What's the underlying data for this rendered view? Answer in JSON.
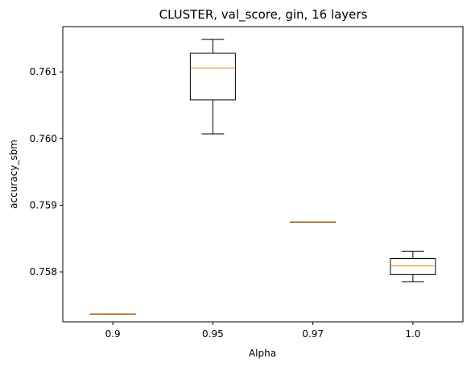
{
  "chart_data": {
    "type": "box",
    "title": "CLUSTER, val_score, gin, 16 layers",
    "xlabel": "Alpha",
    "ylabel": "accuracy_sbm",
    "categories": [
      "0.9",
      "0.95",
      "0.97",
      "1.0"
    ],
    "ylim": [
      0.75725,
      0.76168
    ],
    "yticks": [
      0.758,
      0.759,
      0.76,
      0.761
    ],
    "ytick_labels": [
      "0.758",
      "0.759",
      "0.760",
      "0.761"
    ],
    "grid": false,
    "boxes": [
      {
        "category": "0.9",
        "whisker_low": 0.75737,
        "q1": 0.75737,
        "median": 0.75737,
        "q3": 0.75737,
        "whisker_high": 0.75737
      },
      {
        "category": "0.95",
        "whisker_low": 0.76007,
        "q1": 0.76058,
        "median": 0.76106,
        "q3": 0.76128,
        "whisker_high": 0.76149
      },
      {
        "category": "0.97",
        "whisker_low": 0.75875,
        "q1": 0.75875,
        "median": 0.75875,
        "q3": 0.75875,
        "whisker_high": 0.75875
      },
      {
        "category": "1.0",
        "whisker_low": 0.75785,
        "q1": 0.75796,
        "median": 0.75809,
        "q3": 0.7582,
        "whisker_high": 0.75831
      }
    ],
    "colors": {
      "box": "#000000",
      "median": "#ff7f0e",
      "axes": "#000000"
    }
  }
}
